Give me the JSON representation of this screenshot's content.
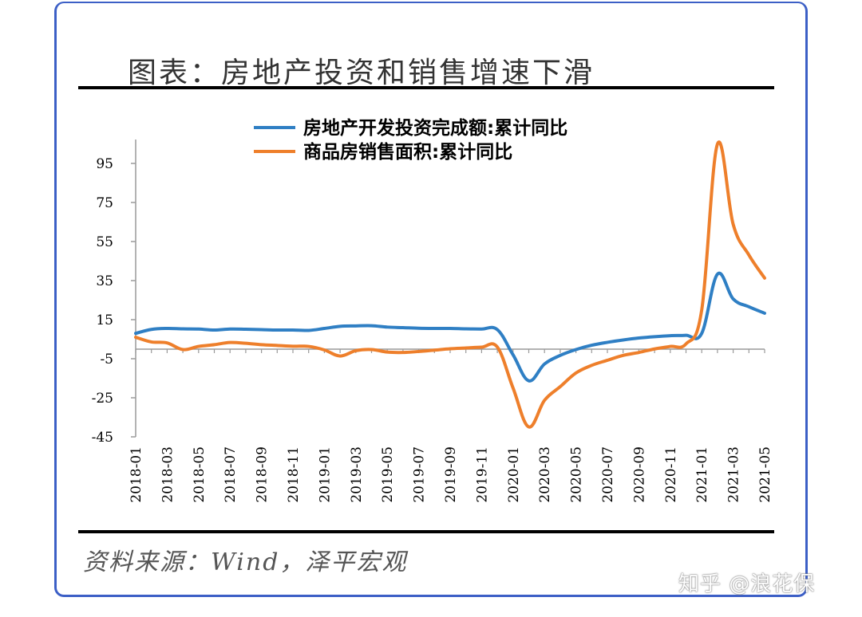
{
  "title": "图表：房地产投资和销售增速下滑",
  "source": "资料来源：Wind，泽平宏观",
  "watermark": "知乎 @浪花保",
  "colors": {
    "series1": "#2f7fc4",
    "series2": "#ee7f2b",
    "border": "#3c5fc6"
  },
  "chart_data": {
    "type": "line",
    "title": "图表：房地产投资和销售增速下滑",
    "ylim": [
      -45,
      105
    ],
    "yticks": [
      95,
      75,
      55,
      35,
      15,
      -5,
      -25,
      -45
    ],
    "xticks": [
      "2018-01",
      "2018-03",
      "2018-05",
      "2018-07",
      "2018-09",
      "2018-11",
      "2019-01",
      "2019-03",
      "2019-05",
      "2019-07",
      "2019-09",
      "2019-11",
      "2020-01",
      "2020-03",
      "2020-05",
      "2020-07",
      "2020-09",
      "2020-11",
      "2021-01",
      "2021-03",
      "2021-05"
    ],
    "legend_position": "top",
    "x": [
      "2018-01",
      "2018-02",
      "2018-03",
      "2018-04",
      "2018-05",
      "2018-06",
      "2018-07",
      "2018-08",
      "2018-09",
      "2018-10",
      "2018-11",
      "2018-12",
      "2019-01",
      "2019-02",
      "2019-03",
      "2019-04",
      "2019-05",
      "2019-06",
      "2019-07",
      "2019-08",
      "2019-09",
      "2019-10",
      "2019-11",
      "2019-12",
      "2020-01",
      "2020-02",
      "2020-03",
      "2020-04",
      "2020-05",
      "2020-06",
      "2020-07",
      "2020-08",
      "2020-09",
      "2020-10",
      "2020-11",
      "2020-12",
      "2021-01",
      "2021-02",
      "2021-03",
      "2021-04",
      "2021-05"
    ],
    "series": [
      {
        "name": "房地产开发投资完成额:累计同比",
        "values": [
          8,
          10,
          10.5,
          10.3,
          10.2,
          9.7,
          10.2,
          10.1,
          9.9,
          9.7,
          9.7,
          9.5,
          10.5,
          11.6,
          11.8,
          11.9,
          11.2,
          10.9,
          10.6,
          10.5,
          10.5,
          10.3,
          10.2,
          9.9,
          -3,
          -16.3,
          -7.7,
          -3.3,
          -0.3,
          1.9,
          3.4,
          4.6,
          5.6,
          6.3,
          6.8,
          7.0,
          8,
          38.3,
          25.6,
          21.6,
          18.3
        ]
      },
      {
        "name": "商品房销售面积:累计同比",
        "values": [
          6,
          3.6,
          3.1,
          -0.3,
          1.3,
          2.2,
          3.3,
          2.9,
          2.2,
          1.8,
          1.4,
          1.3,
          -0.5,
          -3.6,
          -0.9,
          -0.3,
          -1.6,
          -1.8,
          -1.3,
          -0.6,
          0.1,
          0.5,
          0.9,
          1.0,
          -20,
          -39.9,
          -26.3,
          -19.3,
          -12.3,
          -8.4,
          -5.8,
          -3.3,
          -1.8,
          0,
          1.3,
          2.6,
          20,
          104.9,
          63.8,
          48.1,
          36.3
        ]
      }
    ]
  }
}
